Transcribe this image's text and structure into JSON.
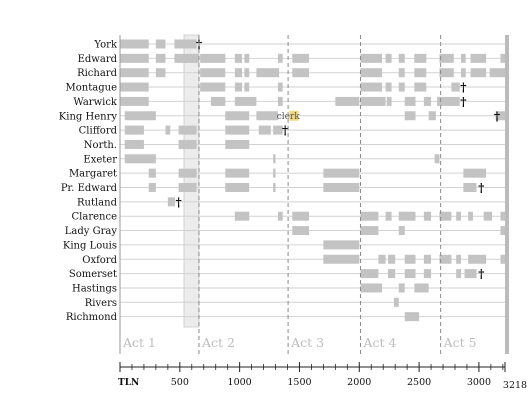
{
  "chart_data": {
    "type": "timeline",
    "x_axis_name": "TLN",
    "x_ticks": [
      500,
      1000,
      1500,
      2000,
      2500,
      3000
    ],
    "x_end_label": "3218",
    "xlim": [
      0,
      3218
    ],
    "acts": [
      {
        "label": "Act 1",
        "start": 0
      },
      {
        "label": "Act 2",
        "start": 660
      },
      {
        "label": "Act 3",
        "start": 1405
      },
      {
        "label": "Act 4",
        "start": 2010
      },
      {
        "label": "Act 5",
        "start": 2680
      }
    ],
    "highlight_span": [
      535,
      660
    ],
    "highlight_color": "#ececec",
    "bar_color": "#c3c3c3",
    "note_color": "#f3d77c",
    "characters": [
      {
        "name": "York",
        "segments": [
          [
            0,
            240
          ],
          [
            300,
            380
          ],
          [
            455,
            640
          ]
        ],
        "death": 660
      },
      {
        "name": "Edward",
        "segments": [
          [
            0,
            240
          ],
          [
            300,
            380
          ],
          [
            455,
            660
          ],
          [
            670,
            880
          ],
          [
            960,
            1020
          ],
          [
            1040,
            1080
          ],
          [
            1320,
            1360
          ],
          [
            1440,
            1580
          ],
          [
            2010,
            2190
          ],
          [
            2220,
            2270
          ],
          [
            2330,
            2380
          ],
          [
            2460,
            2560
          ],
          [
            2670,
            2790
          ],
          [
            2850,
            2890
          ],
          [
            2930,
            3060
          ],
          [
            3180,
            3218
          ]
        ]
      },
      {
        "name": "Richard",
        "segments": [
          [
            0,
            240
          ],
          [
            300,
            380
          ],
          [
            670,
            880
          ],
          [
            960,
            1020
          ],
          [
            1040,
            1080
          ],
          [
            1140,
            1330
          ],
          [
            1440,
            1580
          ],
          [
            2010,
            2190
          ],
          [
            2330,
            2380
          ],
          [
            2460,
            2560
          ],
          [
            2670,
            2790
          ],
          [
            2850,
            2890
          ],
          [
            2930,
            3060
          ],
          [
            3090,
            3218
          ]
        ]
      },
      {
        "name": "Montague",
        "segments": [
          [
            0,
            240
          ],
          [
            670,
            880
          ],
          [
            960,
            1020
          ],
          [
            1040,
            1080
          ],
          [
            1320,
            1360
          ],
          [
            2010,
            2190
          ],
          [
            2220,
            2270
          ],
          [
            2330,
            2380
          ],
          [
            2460,
            2560
          ],
          [
            2770,
            2840
          ]
        ],
        "death": 2870
      },
      {
        "name": "Warwick",
        "segments": [
          [
            0,
            240
          ],
          [
            760,
            880
          ],
          [
            960,
            1140
          ],
          [
            1320,
            1360
          ],
          [
            1800,
            2000
          ],
          [
            2010,
            2220
          ],
          [
            2230,
            2270
          ],
          [
            2380,
            2470
          ],
          [
            2540,
            2600
          ],
          [
            2650,
            2840
          ]
        ],
        "death": 2870
      },
      {
        "name": "King Henry",
        "segments": [
          [
            40,
            300
          ],
          [
            880,
            1080
          ],
          [
            1140,
            1320
          ],
          [
            2380,
            2470
          ],
          [
            2580,
            2640
          ],
          [
            3140,
            3218
          ]
        ],
        "death": 3218
      },
      {
        "name": "Clifford",
        "segments": [
          [
            40,
            200
          ],
          [
            380,
            420
          ],
          [
            490,
            640
          ],
          [
            880,
            1080
          ],
          [
            1160,
            1260
          ],
          [
            1280,
            1360
          ]
        ],
        "death": 1380
      },
      {
        "name": "North.",
        "segments": [
          [
            40,
            200
          ],
          [
            490,
            640
          ],
          [
            880,
            1080
          ]
        ]
      },
      {
        "name": "Exeter",
        "segments": [
          [
            40,
            300
          ],
          [
            1280,
            1300
          ],
          [
            2630,
            2670
          ]
        ]
      },
      {
        "name": "Margaret",
        "segments": [
          [
            240,
            300
          ],
          [
            490,
            640
          ],
          [
            880,
            1080
          ],
          [
            1280,
            1300
          ],
          [
            1700,
            2000
          ],
          [
            2870,
            3060
          ]
        ]
      },
      {
        "name": "Pr. Edward",
        "segments": [
          [
            240,
            300
          ],
          [
            490,
            640
          ],
          [
            880,
            1080
          ],
          [
            1280,
            1300
          ],
          [
            1700,
            2000
          ],
          [
            2870,
            2980
          ]
        ],
        "death": 3020
      },
      {
        "name": "Rutland",
        "segments": [
          [
            400,
            460
          ]
        ],
        "death": 490
      },
      {
        "name": "Clarence",
        "segments": [
          [
            960,
            1080
          ],
          [
            1320,
            1360
          ],
          [
            1440,
            1580
          ],
          [
            2010,
            2160
          ],
          [
            2220,
            2270
          ],
          [
            2330,
            2470
          ],
          [
            2540,
            2600
          ],
          [
            2670,
            2770
          ],
          [
            2810,
            2850
          ],
          [
            2910,
            2950
          ],
          [
            3040,
            3110
          ],
          [
            3180,
            3218
          ]
        ]
      },
      {
        "name": "Lady Gray",
        "segments": [
          [
            1440,
            1580
          ],
          [
            2010,
            2160
          ],
          [
            2330,
            2380
          ],
          [
            3180,
            3218
          ]
        ]
      },
      {
        "name": "King Louis",
        "segments": [
          [
            1700,
            2000
          ]
        ]
      },
      {
        "name": "Oxford",
        "segments": [
          [
            1700,
            2000
          ],
          [
            2160,
            2220
          ],
          [
            2240,
            2300
          ],
          [
            2380,
            2470
          ],
          [
            2540,
            2600
          ],
          [
            2670,
            2770
          ],
          [
            2810,
            2850
          ],
          [
            2910,
            3060
          ],
          [
            3180,
            3218
          ]
        ]
      },
      {
        "name": "Somerset",
        "segments": [
          [
            2010,
            2160
          ],
          [
            2240,
            2300
          ],
          [
            2380,
            2470
          ],
          [
            2540,
            2600
          ],
          [
            2810,
            2850
          ],
          [
            2880,
            2980
          ]
        ],
        "death": 3020
      },
      {
        "name": "Hastings",
        "segments": [
          [
            2010,
            2190
          ],
          [
            2330,
            2380
          ],
          [
            2460,
            2580
          ]
        ]
      },
      {
        "name": "Rivers",
        "segments": [
          [
            2290,
            2330
          ]
        ]
      },
      {
        "name": "Richmond",
        "segments": [
          [
            2380,
            2500
          ]
        ]
      }
    ],
    "annotations": [
      {
        "character": "King Henry",
        "text": "clerk",
        "x": 1410,
        "marker_x": 1450
      }
    ]
  }
}
